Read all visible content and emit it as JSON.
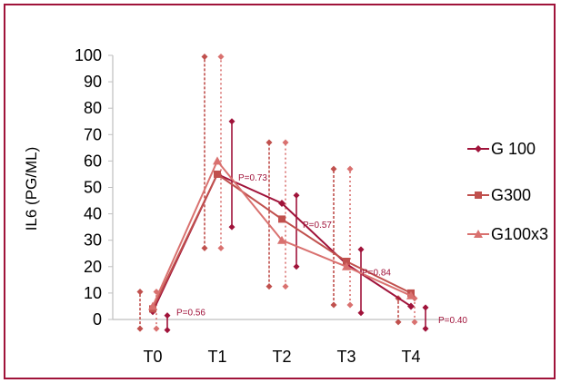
{
  "colors": {
    "border": "#a0133a",
    "g100": "#a0133a",
    "g300": "#c0504d",
    "g100x3": "#d9716f",
    "grid": "#bfbfbf"
  },
  "chart_data": {
    "type": "line",
    "ylabel": "IL6 (PG/ML)",
    "xlabel": "",
    "categories": [
      "T0",
      "T1",
      "T2",
      "T3",
      "T4"
    ],
    "ylim": [
      0,
      100
    ],
    "yticks": [
      0,
      10,
      20,
      30,
      40,
      50,
      60,
      70,
      80,
      90,
      100
    ],
    "grid": false,
    "legend_position": "right",
    "series": [
      {
        "name": "G 100",
        "values": [
          3,
          55,
          44,
          21,
          5
        ],
        "ranges": [
          [
            -4,
            1.5
          ],
          [
            35,
            75
          ],
          [
            20,
            47
          ],
          [
            2.5,
            26.5
          ],
          [
            -3.5,
            4.5
          ]
        ]
      },
      {
        "name": "G300",
        "values": [
          4,
          55,
          38,
          22,
          10
        ],
        "ranges": [
          [
            -3.5,
            10.5
          ],
          [
            27,
            99.5
          ],
          [
            12.5,
            67
          ],
          [
            5.5,
            57
          ],
          [
            -1,
            8
          ]
        ]
      },
      {
        "name": "G100x3",
        "values": [
          5,
          60,
          30,
          20,
          9
        ],
        "ranges": [
          [
            -3.5,
            10.5
          ],
          [
            27,
            99.5
          ],
          [
            12.5,
            67
          ],
          [
            5.5,
            57
          ],
          [
            -1,
            8
          ]
        ]
      }
    ],
    "annotations": [
      "P=0.56",
      "P=0.73",
      "P=0.57",
      "P=0.84",
      "P=0.40"
    ]
  }
}
